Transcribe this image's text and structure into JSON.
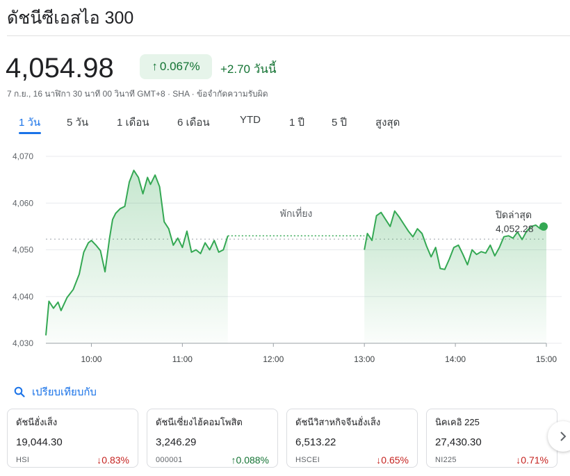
{
  "header": {
    "title": "ดัชนีซีเอสไอ 300",
    "price": "4,054.98",
    "change_pct": "0.067%",
    "change_abs": "+2.70 วันนี้",
    "subline": "7 ก.ย., 16 นาฬิกา 30 นาที 00 วินาที GMT+8 · SHA · ข้อจำกัดความรับผิด"
  },
  "tabs": [
    {
      "label": "1 วัน",
      "active": true
    },
    {
      "label": "5 วัน"
    },
    {
      "label": "1 เดือน"
    },
    {
      "label": "6 เดือน"
    },
    {
      "label": "YTD"
    },
    {
      "label": "1 ปี"
    },
    {
      "label": "5 ปี"
    },
    {
      "label": "สูงสุด"
    }
  ],
  "chart_data": {
    "type": "line",
    "y_ticks": [
      "4,070",
      "4,060",
      "4,050",
      "4,040",
      "4,030"
    ],
    "x_ticks": [
      "10:00",
      "11:00",
      "12:00",
      "13:00",
      "14:00",
      "15:00"
    ],
    "ylim": [
      4030,
      4070
    ],
    "xlim": [
      "09:30",
      "15:00"
    ],
    "lunch_label": "พักเที่ยง",
    "previous_close_label": "ปิดล่าสุด",
    "previous_close_value": "4,052.28",
    "previous_close": 4052.28,
    "color": "#34a853",
    "sessions": [
      {
        "x": [
          "09:30",
          "09:32",
          "09:35",
          "09:38",
          "09:40",
          "09:44",
          "09:48",
          "09:52",
          "09:55",
          "09:58",
          "10:00",
          "10:03",
          "10:06",
          "10:09",
          "10:12",
          "10:14",
          "10:16",
          "10:19",
          "10:22",
          "10:25",
          "10:28",
          "10:31",
          "10:34",
          "10:37",
          "10:39",
          "10:42",
          "10:45",
          "10:48",
          "10:51",
          "10:54",
          "10:57",
          "11:00",
          "11:03",
          "11:06",
          "11:09",
          "11:12",
          "11:15",
          "11:18",
          "11:21",
          "11:24",
          "11:27",
          "11:30"
        ],
        "y": [
          4031.7,
          4039.0,
          4037.5,
          4038.8,
          4037.0,
          4039.8,
          4041.5,
          4044.8,
          4049.5,
          4051.5,
          4052.0,
          4051.0,
          4049.8,
          4045.3,
          4052.5,
          4056.5,
          4057.8,
          4058.8,
          4059.3,
          4064.5,
          4067.0,
          4065.5,
          4062.0,
          4065.5,
          4064.0,
          4066.0,
          4063.5,
          4056.0,
          4054.5,
          4051.0,
          4052.5,
          4050.5,
          4054.0,
          4049.5,
          4050.0,
          4049.2,
          4051.5,
          4050.0,
          4052.0,
          4049.5,
          4050.0,
          4053.0
        ]
      },
      {
        "x": [
          "13:00",
          "13:02",
          "13:05",
          "13:08",
          "13:11",
          "13:14",
          "13:17",
          "13:20",
          "13:23",
          "13:26",
          "13:29",
          "13:32",
          "13:35",
          "13:38",
          "13:41",
          "13:44",
          "13:47",
          "13:50",
          "13:53",
          "13:56",
          "13:59",
          "14:02",
          "14:05",
          "14:08",
          "14:11",
          "14:14",
          "14:17",
          "14:20",
          "14:23",
          "14:26",
          "14:29",
          "14:32",
          "14:35",
          "14:38",
          "14:41",
          "14:44",
          "14:47",
          "14:50",
          "14:53",
          "14:56",
          "15:00"
        ],
        "y": [
          4050.0,
          4053.5,
          4052.0,
          4057.3,
          4058.0,
          4056.5,
          4055.0,
          4058.3,
          4057.0,
          4055.5,
          4054.0,
          4052.8,
          4054.5,
          4053.5,
          4050.8,
          4048.5,
          4050.5,
          4046.0,
          4045.8,
          4048.0,
          4050.5,
          4051.0,
          4049.0,
          4046.8,
          4050.0,
          4049.0,
          4049.6,
          4049.3,
          4051.0,
          4048.7,
          4050.5,
          4052.8,
          4053.0,
          4052.5,
          4053.8,
          4052.2,
          4054.0,
          4055.0,
          4055.3,
          4054.5,
          4054.98
        ]
      }
    ]
  },
  "compare": {
    "label": "เปรียบเทียบกับ",
    "icon": "search-icon"
  },
  "cards": [
    {
      "name": "ดัชนีฮั่งเส็ง",
      "value": "19,044.30",
      "symbol": "HSI",
      "pct": "0.83%",
      "direction": "down"
    },
    {
      "name": "ดัชนีเซี่ยงไฮ้คอมโพสิต",
      "value": "3,246.29",
      "symbol": "000001",
      "pct": "0.088%",
      "direction": "up"
    },
    {
      "name": "ดัชนีวิสาหกิจจีนฮั่งเส็ง",
      "value": "6,513.22",
      "symbol": "HSCEI",
      "pct": "0.65%",
      "direction": "down"
    },
    {
      "name": "นิคเคอิ 225",
      "value": "27,430.30",
      "symbol": "NI225",
      "pct": "0.71%",
      "direction": "down"
    }
  ],
  "icons": {
    "up_arrow": "↑",
    "down_arrow": "↓",
    "next": "chevron-right-icon"
  }
}
